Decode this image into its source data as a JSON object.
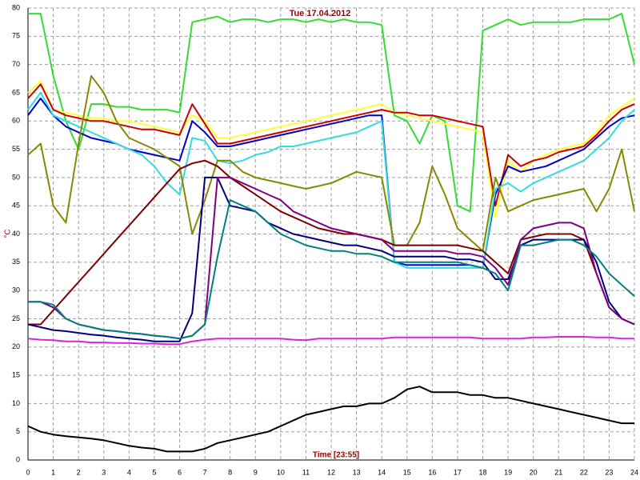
{
  "chart_data": {
    "type": "line",
    "title": "Tue  17.04.2012",
    "x_label": "Time [23:55]",
    "y_label": "°C",
    "xlim": [
      0,
      24
    ],
    "xticks": [
      0,
      1,
      2,
      3,
      4,
      5,
      6,
      7,
      8,
      9,
      10,
      11,
      12,
      13,
      14,
      15,
      16,
      17,
      18,
      19,
      20,
      21,
      22,
      23,
      24
    ],
    "ylim": [
      0,
      80
    ],
    "yticks": [
      0,
      5,
      10,
      15,
      20,
      25,
      30,
      35,
      40,
      45,
      50,
      55,
      60,
      65,
      70,
      75,
      80
    ],
    "grid": true,
    "x": [
      0,
      0.5,
      1,
      1.5,
      2,
      2.5,
      3,
      3.5,
      4,
      4.5,
      5,
      5.5,
      6,
      6.5,
      7,
      7.5,
      8,
      8.5,
      9,
      9.5,
      10,
      10.5,
      11,
      11.5,
      12,
      12.5,
      13,
      13.5,
      14,
      14.5,
      15,
      15.5,
      16,
      16.5,
      17,
      17.5,
      18,
      18.5,
      19,
      19.5,
      20,
      20.5,
      21,
      21.5,
      22,
      22.5,
      23,
      23.5,
      24
    ],
    "series": [
      {
        "color": "#33dd33",
        "values": [
          79,
          79,
          68,
          60,
          55,
          63,
          63,
          62.5,
          62.5,
          62,
          62,
          62,
          61.5,
          77.5,
          78,
          78.5,
          77.5,
          78,
          78,
          77.5,
          78,
          78,
          77.5,
          78,
          77.5,
          78,
          77.5,
          77.5,
          77,
          61,
          60,
          56,
          61,
          60,
          45,
          44,
          76,
          77,
          78,
          77,
          77.5,
          77.5,
          77.5,
          77.5,
          78,
          78,
          78,
          79,
          70
        ]
      },
      {
        "color": "#ffff33",
        "values": [
          65,
          67,
          62,
          61.5,
          61,
          60.5,
          60.5,
          60,
          60,
          59.5,
          59,
          58.5,
          58,
          61,
          60,
          57,
          57,
          57.5,
          58,
          58.5,
          59,
          59.5,
          60,
          60.5,
          61,
          61.5,
          62,
          62.5,
          63,
          61.5,
          61,
          60.5,
          60,
          59.5,
          59,
          58.5,
          58,
          43,
          53,
          51,
          53,
          54,
          55,
          55.5,
          56,
          58,
          61,
          62.5,
          64
        ]
      },
      {
        "color": "#cc0000",
        "values": [
          64,
          66.5,
          62,
          61,
          60.5,
          60,
          60,
          59.5,
          59,
          58.5,
          58.5,
          58,
          57.5,
          63,
          59.5,
          56,
          56,
          56.5,
          57,
          57.5,
          58,
          58.5,
          59,
          59.5,
          60,
          60.5,
          61,
          61.5,
          62,
          61.5,
          61.5,
          61,
          61,
          60.5,
          60,
          59.5,
          59,
          45,
          54,
          52,
          53,
          53.5,
          54.5,
          55,
          55.5,
          57.5,
          60,
          62,
          63
        ]
      },
      {
        "color": "#0000cc",
        "values": [
          61,
          64,
          61,
          59,
          58,
          57,
          56.5,
          56,
          55,
          54.5,
          54,
          53.5,
          53,
          60,
          58,
          55.5,
          55.5,
          56,
          56.5,
          57,
          57.5,
          58,
          58.5,
          59,
          59.5,
          60,
          60.5,
          61,
          61,
          35,
          34.5,
          34.5,
          34.5,
          34.5,
          34.5,
          34.5,
          34,
          47,
          52,
          51,
          51.5,
          52,
          53,
          54,
          55,
          57,
          59,
          60.5,
          61
        ]
      },
      {
        "color": "#33dddd",
        "values": [
          62,
          65,
          61,
          60,
          59,
          58,
          57,
          56,
          55,
          54,
          52,
          49,
          47,
          57,
          56.5,
          53,
          52.5,
          53,
          54,
          54.5,
          55.5,
          55.5,
          56,
          56.5,
          57,
          57.5,
          58,
          59,
          60,
          35,
          34,
          34,
          34,
          34,
          34,
          34,
          34,
          48,
          49,
          47.5,
          49,
          50,
          51,
          52,
          53,
          55,
          57,
          60,
          62
        ]
      },
      {
        "color": "#888800",
        "values": [
          54,
          56,
          45,
          42,
          56,
          68,
          65,
          60,
          57,
          56,
          55,
          53.5,
          52,
          40,
          46,
          53,
          53,
          51,
          50,
          49.5,
          49,
          48.5,
          48,
          48.5,
          49,
          50,
          51,
          50.5,
          50,
          38,
          38,
          42,
          52,
          47,
          41,
          39,
          37,
          50,
          44,
          45,
          46,
          46.5,
          47,
          47.5,
          48,
          44,
          48,
          55,
          44
        ]
      },
      {
        "color": "#800000",
        "values": [
          24,
          24,
          26.5,
          29,
          31.5,
          34,
          36.5,
          39,
          41.5,
          44,
          46.5,
          49,
          51.5,
          52.5,
          53,
          52,
          50,
          48.5,
          47,
          45.5,
          44,
          43,
          42,
          41,
          40.5,
          40,
          40,
          39.5,
          39,
          38,
          38,
          38,
          38,
          38,
          38,
          37.5,
          37,
          35,
          33,
          39,
          39.5,
          40,
          40,
          40,
          39,
          33,
          27,
          25,
          24
        ]
      },
      {
        "color": "#000080",
        "values": [
          24,
          23.5,
          23,
          22.8,
          22.5,
          22.2,
          22,
          21.7,
          21.5,
          21.3,
          21,
          21,
          21,
          26,
          50,
          50,
          45,
          44.5,
          44,
          42,
          41,
          40,
          39.5,
          39,
          38.5,
          38,
          38,
          37.5,
          37,
          36,
          36,
          36,
          36,
          36,
          35.5,
          35.5,
          35,
          32,
          32,
          38,
          39,
          39,
          39,
          39,
          39,
          35,
          28,
          25,
          24
        ]
      },
      {
        "color": "#800080",
        "values": [
          28,
          28,
          27,
          25,
          24,
          23.5,
          23,
          22.8,
          22.5,
          22.3,
          22,
          21.8,
          21.5,
          22,
          24,
          50,
          50,
          49,
          48,
          47,
          46,
          44,
          43,
          42,
          41,
          40.5,
          40,
          39.5,
          39,
          37,
          37,
          37,
          37,
          37,
          36.5,
          36.5,
          36,
          34,
          31,
          39,
          41,
          41.5,
          42,
          42,
          41,
          33,
          27,
          25,
          24
        ]
      },
      {
        "color": "#008080",
        "values": [
          28,
          28,
          27.5,
          25,
          24,
          23.5,
          23,
          22.8,
          22.5,
          22.3,
          22,
          21.8,
          21.5,
          22,
          24,
          36,
          46,
          45,
          44,
          42,
          40,
          39,
          38,
          37.5,
          37,
          37,
          36.5,
          36.5,
          36,
          35,
          35,
          35,
          35,
          35,
          35,
          34.5,
          34,
          33,
          30,
          38,
          38,
          38.5,
          39,
          39,
          38,
          36,
          33,
          31,
          29
        ]
      },
      {
        "color": "#dd22dd",
        "values": [
          21.5,
          21.3,
          21.2,
          21,
          21,
          20.8,
          20.8,
          20.7,
          20.7,
          20.6,
          20.6,
          20.5,
          20.5,
          21,
          21.3,
          21.5,
          21.5,
          21.5,
          21.5,
          21.5,
          21.5,
          21.3,
          21.2,
          21.5,
          21.5,
          21.5,
          21.5,
          21.5,
          21.5,
          21.7,
          21.7,
          21.7,
          21.7,
          21.7,
          21.7,
          21.7,
          21.5,
          21.5,
          21.5,
          21.5,
          21.7,
          21.7,
          21.8,
          21.8,
          21.8,
          21.7,
          21.7,
          21.5,
          21.5
        ]
      },
      {
        "color": "#000000",
        "values": [
          6,
          5,
          4.5,
          4.2,
          4,
          3.8,
          3.5,
          3,
          2.5,
          2.2,
          2,
          1.5,
          1.5,
          1.5,
          2,
          3,
          3.5,
          4,
          4.5,
          5,
          6,
          7,
          8,
          8.5,
          9,
          9.5,
          9.5,
          10,
          10,
          11,
          12.5,
          13,
          12,
          12,
          12,
          11.5,
          11.5,
          11,
          11,
          10.5,
          10,
          9.5,
          9,
          8.5,
          8,
          7.5,
          7,
          6.5,
          6.5
        ]
      }
    ]
  }
}
